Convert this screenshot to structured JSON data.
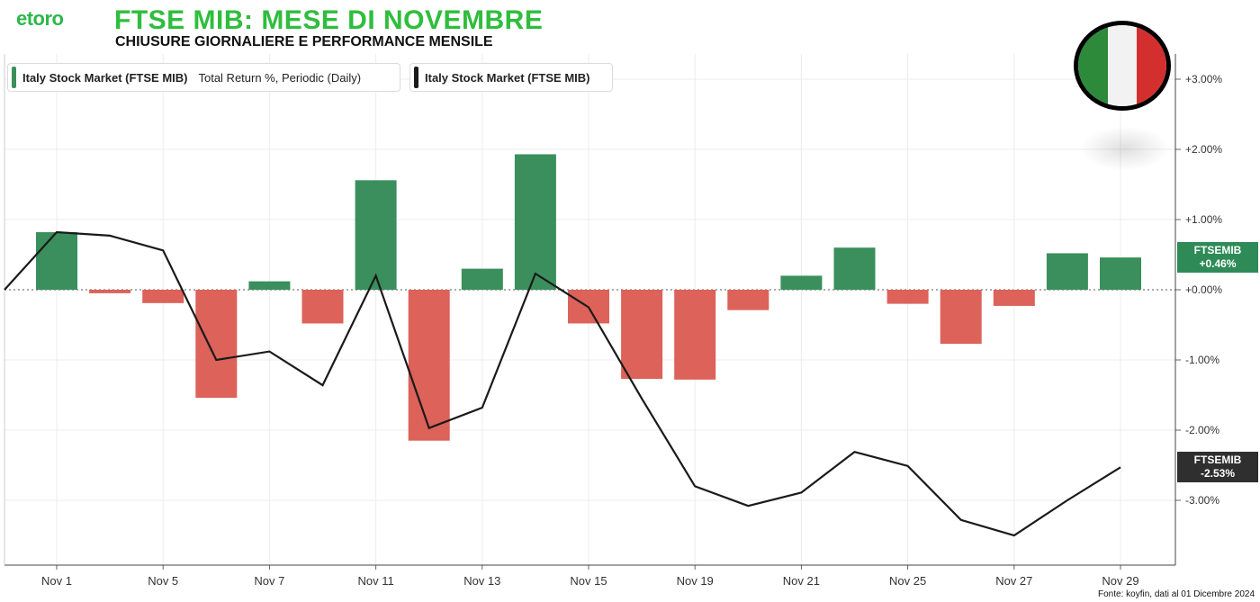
{
  "header": {
    "logo": "etoro",
    "title": "FTSE MIB: MESE DI NOVEMBRE",
    "subtitle": "CHIUSURE GIORNALIERE E PERFORMANCE MENSILE"
  },
  "legend": {
    "bars_name": "Italy Stock Market (FTSE MIB)",
    "bars_desc": "Total Return %, Periodic (Daily)",
    "line_name": "Italy Stock Market (FTSE MIB)"
  },
  "badges": {
    "bars": {
      "line1": "FTSEMIB",
      "line2": "+0.46%"
    },
    "line": {
      "line1": "FTSEMIB",
      "line2": "-2.53%"
    }
  },
  "flag_colors": [
    "#2d8a3a",
    "#f2f2f2",
    "#d32f2f"
  ],
  "source": "Fonte: koyfin, dati al 01 Dicembre 2024",
  "colors": {
    "up": "#3a8f5c",
    "down": "#dc625a",
    "line": "#1a1a1a",
    "badge_up": "#2e8b57",
    "badge_line": "#2f2f2f"
  },
  "chart_data": {
    "type": "bar",
    "categories": [
      "Nov 1",
      "Nov 4",
      "Nov 5",
      "Nov 6",
      "Nov 7",
      "Nov 8",
      "Nov 11",
      "Nov 12",
      "Nov 13",
      "Nov 14",
      "Nov 15",
      "Nov 18",
      "Nov 19",
      "Nov 20",
      "Nov 21",
      "Nov 22",
      "Nov 25",
      "Nov 26",
      "Nov 27",
      "Nov 28",
      "Nov 29"
    ],
    "tick_labels": [
      "Nov 1",
      "Nov 5",
      "Nov 7",
      "Nov 11",
      "Nov 13",
      "Nov 15",
      "Nov 19",
      "Nov 21",
      "Nov 25",
      "Nov 27",
      "Nov 29"
    ],
    "series": [
      {
        "name": "Italy Stock Market (FTSE MIB) Total Return %, Periodic (Daily)",
        "type": "bar",
        "values": [
          0.82,
          -0.05,
          -0.19,
          -1.54,
          0.12,
          -0.48,
          1.56,
          -2.15,
          0.3,
          1.93,
          -0.48,
          -1.27,
          -1.28,
          -0.29,
          0.2,
          0.6,
          -0.2,
          -0.77,
          -0.23,
          0.52,
          0.46
        ]
      },
      {
        "name": "Italy Stock Market (FTSE MIB)",
        "type": "line",
        "start_value": 0.0,
        "values": [
          0.82,
          0.77,
          0.56,
          -1.0,
          -0.88,
          -1.36,
          0.2,
          -1.97,
          -1.68,
          0.23,
          -0.25,
          -1.55,
          -2.8,
          -3.08,
          -2.89,
          -2.31,
          -2.51,
          -3.28,
          -3.5,
          -3.0,
          -2.53
        ]
      }
    ],
    "y_ticks": [
      "+3.00%",
      "+2.00%",
      "+1.00%",
      "+0.00%",
      "-1.00%",
      "-2.00%",
      "-3.00%"
    ],
    "ylim": [
      -3.9,
      3.35
    ],
    "grid": true,
    "legend_position": "top-left"
  }
}
